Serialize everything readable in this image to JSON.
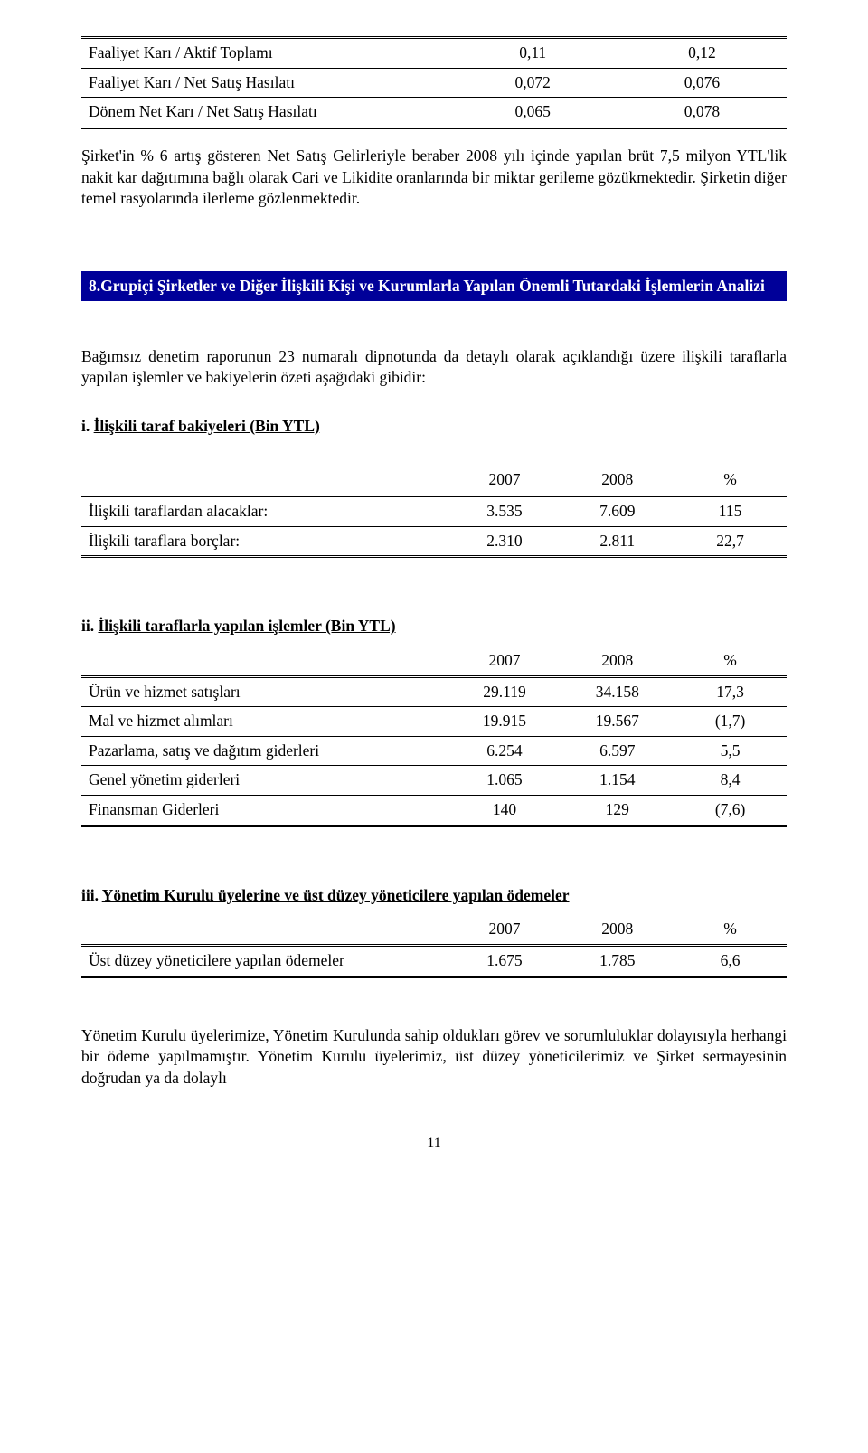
{
  "table_intro": {
    "columns": [
      "",
      "",
      ""
    ],
    "rows": [
      {
        "label": "Faaliyet Karı / Aktif Toplamı",
        "v1": "0,11",
        "v2": "0,12"
      },
      {
        "label": "Faaliyet Karı / Net Satış Hasılatı",
        "v1": "0,072",
        "v2": "0,076"
      },
      {
        "label": "Dönem Net Karı / Net Satış Hasılatı",
        "v1": "0,065",
        "v2": "0,078"
      }
    ]
  },
  "para1": "Şirket'in % 6 artış gösteren Net Satış Gelirleriyle beraber 2008 yılı içinde yapılan brüt 7,5 milyon YTL'lik nakit kar dağıtımına bağlı olarak Cari ve Likidite oranlarında bir miktar gerileme gözükmektedir. Şirketin diğer temel rasyolarında ilerleme gözlenmektedir.",
  "section8": {
    "title": "8.Grupiçi Şirketler ve Diğer İlişkili Kişi ve Kurumlarla Yapılan Önemli Tutardaki İşlemlerin Analizi",
    "lead": "Bağımsız denetim raporunun 23 numaralı dipnotunda da detaylı olarak açıklandığı üzere ilişkili taraflarla yapılan işlemler ve bakiyelerin özeti aşağıdaki gibidir:"
  },
  "sub_i": {
    "prefix": "i. ",
    "title": "İlişkili taraf  bakiyeleri (Bin YTL)",
    "columns": [
      "",
      "2007",
      "2008",
      "%"
    ],
    "rows": [
      {
        "label": "İlişkili taraflardan alacaklar:",
        "c1": "3.535",
        "c2": "7.609",
        "c3": "115"
      },
      {
        "label": "İlişkili taraflara borçlar:",
        "c1": "2.310",
        "c2": "2.811",
        "c3": "22,7"
      }
    ]
  },
  "sub_ii": {
    "prefix": "ii. ",
    "title": "İlişkili taraflarla yapılan işlemler (Bin YTL)",
    "columns": [
      "",
      "2007",
      "2008",
      "%"
    ],
    "rows": [
      {
        "label": "Ürün ve hizmet satışları",
        "c1": "29.119",
        "c2": "34.158",
        "c3": "17,3"
      },
      {
        "label": "Mal ve hizmet alımları",
        "c1": "19.915",
        "c2": "19.567",
        "c3": "(1,7)"
      },
      {
        "label": "Pazarlama, satış ve dağıtım giderleri",
        "c1": "6.254",
        "c2": "6.597",
        "c3": "5,5"
      },
      {
        "label": "Genel yönetim giderleri",
        "c1": "1.065",
        "c2": "1.154",
        "c3": "8,4"
      },
      {
        "label": "Finansman Giderleri",
        "c1": "140",
        "c2": "129",
        "c3": "(7,6)"
      }
    ]
  },
  "sub_iii": {
    "prefix": "iii. ",
    "title": "Yönetim Kurulu üyelerine ve üst düzey yöneticilere yapılan ödemeler",
    "columns": [
      "",
      "2007",
      "2008",
      "%"
    ],
    "rows": [
      {
        "label": "Üst düzey yöneticilere yapılan ödemeler",
        "c1": "1.675",
        "c2": "1.785",
        "c3": "6,6"
      }
    ]
  },
  "para2": "Yönetim Kurulu üyelerimize, Yönetim Kurulunda sahip oldukları görev ve sorumluluklar dolayısıyla herhangi bir ödeme yapılmamıştır. Yönetim Kurulu üyelerimiz, üst düzey yöneticilerimiz ve Şirket sermayesinin doğrudan ya da dolaylı",
  "page_number": "11"
}
